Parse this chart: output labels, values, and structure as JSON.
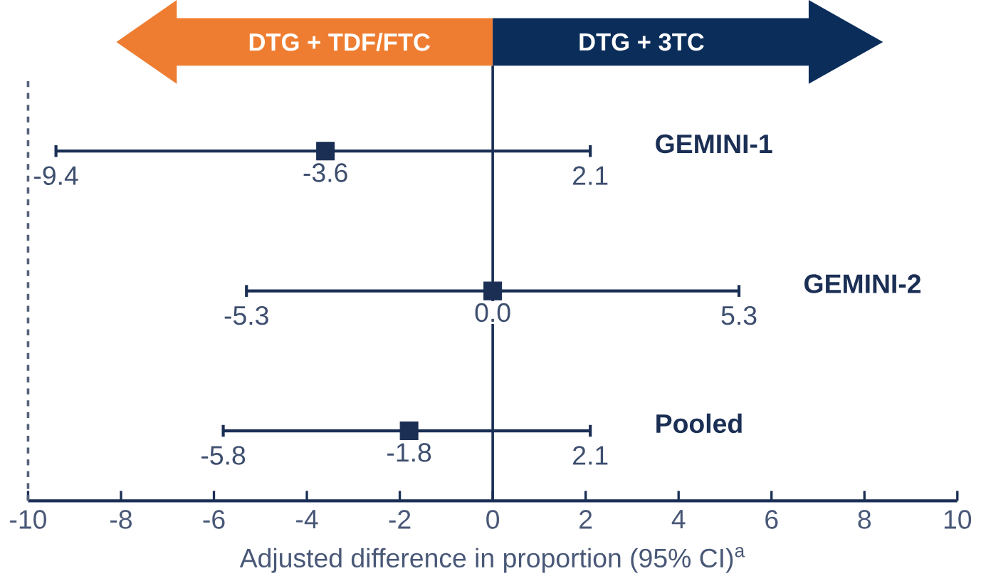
{
  "chart_data": {
    "type": "scatter",
    "orientation": "horizontal",
    "categories": [
      "GEMINI-1",
      "GEMINI-2",
      "Pooled"
    ],
    "values": [
      -3.6,
      0.0,
      -1.8
    ],
    "errors": [
      [
        -9.4,
        2.1
      ],
      [
        -5.3,
        5.3
      ],
      [
        -5.8,
        2.1
      ]
    ],
    "value_labels": [
      "-3.6",
      "0.0",
      "-1.8"
    ],
    "color": "#1b2f55",
    "marker": "square",
    "xlabel": "Adjusted difference in proportion (95% CI)$^{a}$",
    "xlim": [
      -10,
      10
    ],
    "xticks": [
      -10,
      -8,
      -6,
      -4,
      -2,
      0,
      2,
      4,
      6,
      8,
      10
    ],
    "tick_labels": "x",
    "grid": false,
    "ref_lines": [
      {
        "axis": "x",
        "value": 0,
        "color": "#1b2f55",
        "line_style": "solid"
      },
      {
        "axis": "x",
        "value": -10,
        "color": "#56627a",
        "line_style": "dashed"
      }
    ],
    "annotations": [
      "DTG + TDF/FTC",
      "DTG + 3TC",
      {
        "text": "-9.4",
        "x": -9.4,
        "y": "GEMINI-1"
      },
      {
        "text": "2.1",
        "x": 2.1,
        "y": "GEMINI-1"
      },
      {
        "text": "-5.3",
        "x": -5.3,
        "y": "GEMINI-2"
      },
      {
        "text": "5.3",
        "x": 5.3,
        "y": "GEMINI-2"
      },
      {
        "text": "-5.8",
        "x": -5.8,
        "y": "Pooled"
      },
      {
        "text": "2.1",
        "x": 2.1,
        "y": "Pooled"
      }
    ]
  }
}
